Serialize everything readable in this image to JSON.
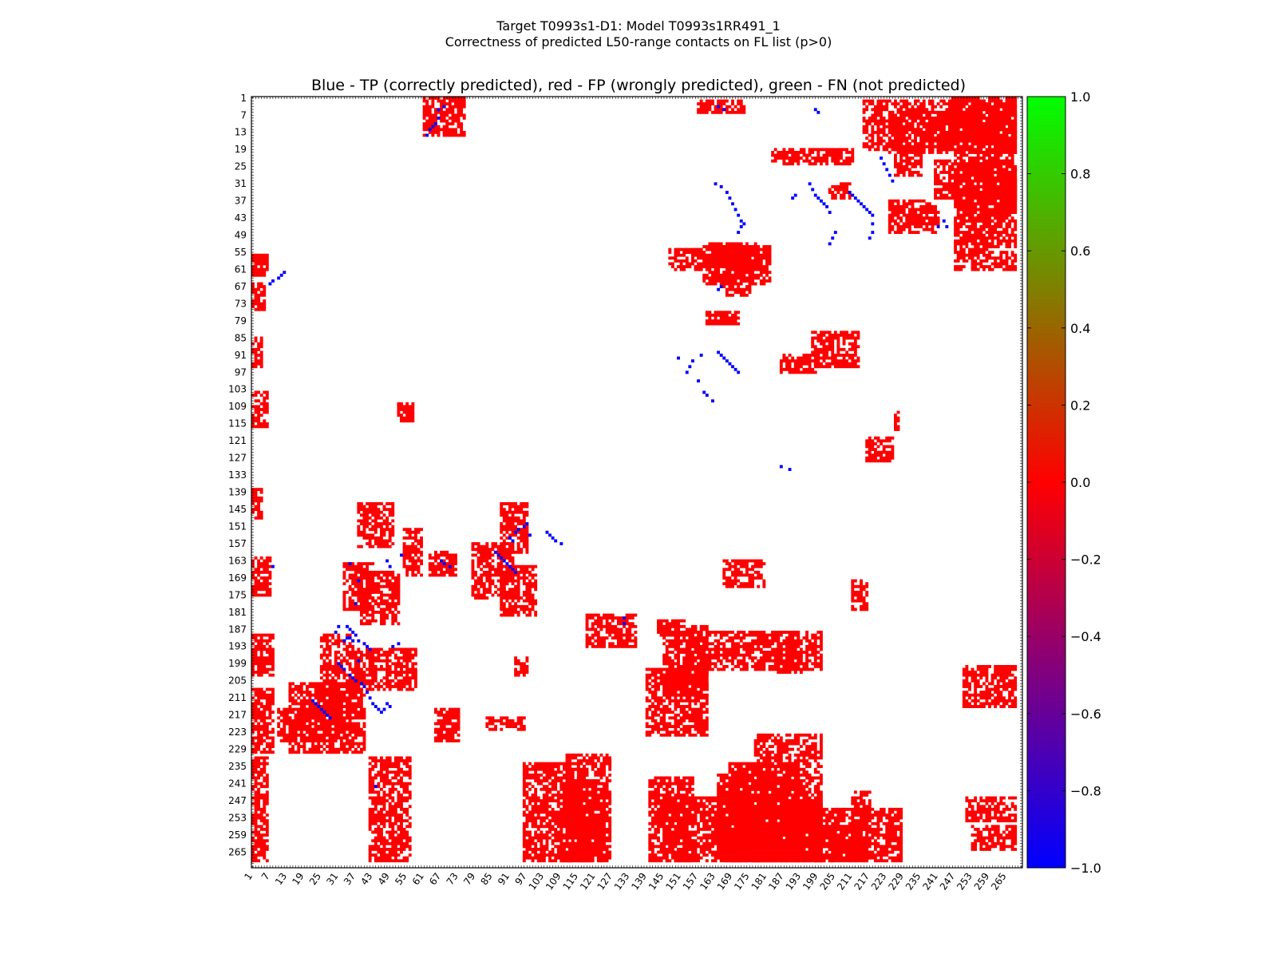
{
  "figure": {
    "title_line1": "Target T0993s1-D1: Model T0993s1RR491_1",
    "title_line2": "Correctness of predicted L50-range contacts on FL list (p>0)"
  },
  "chart_data": {
    "type": "heatmap",
    "title": "Blue - TP (correctly predicted), red - FP (wrongly predicted), green - FN (not predicted)",
    "xlim": [
      1,
      270
    ],
    "ylim": [
      1,
      270
    ],
    "x_ticks": [
      1,
      7,
      13,
      19,
      25,
      31,
      37,
      43,
      49,
      55,
      61,
      67,
      73,
      79,
      85,
      91,
      97,
      103,
      109,
      115,
      121,
      127,
      133,
      139,
      145,
      151,
      157,
      163,
      169,
      175,
      181,
      187,
      193,
      199,
      205,
      211,
      217,
      223,
      229,
      235,
      241,
      247,
      253,
      259,
      265
    ],
    "y_ticks": [
      1,
      7,
      13,
      19,
      25,
      31,
      37,
      43,
      49,
      55,
      61,
      67,
      73,
      79,
      85,
      91,
      97,
      103,
      109,
      115,
      121,
      127,
      133,
      139,
      145,
      151,
      157,
      163,
      169,
      175,
      181,
      187,
      193,
      199,
      205,
      211,
      217,
      223,
      229,
      235,
      241,
      247,
      253,
      259,
      265
    ],
    "colorbar": {
      "range": [
        -1.0,
        1.0
      ],
      "ticks": [
        "1.0",
        "0.8",
        "0.6",
        "0.4",
        "0.2",
        "0.0",
        "−0.2",
        "−0.4",
        "−0.6",
        "−0.8",
        "−1.0"
      ],
      "colors": [
        "#00ff00",
        "#ff0000",
        "#0000ff"
      ]
    },
    "colors": {
      "tp": "#0000ff",
      "fp": "#ff0000",
      "fn": "#00ff00"
    },
    "fp_regions": [
      [
        1,
        56,
        6,
        63
      ],
      [
        1,
        66,
        5,
        75
      ],
      [
        1,
        85,
        4,
        95
      ],
      [
        1,
        104,
        6,
        116
      ],
      [
        1,
        138,
        4,
        148
      ],
      [
        1,
        162,
        7,
        175
      ],
      [
        1,
        189,
        8,
        203
      ],
      [
        1,
        208,
        8,
        230
      ],
      [
        1,
        232,
        6,
        268
      ],
      [
        10,
        215,
        28,
        226
      ],
      [
        14,
        206,
        40,
        230
      ],
      [
        25,
        189,
        36,
        222
      ],
      [
        33,
        164,
        43,
        180
      ],
      [
        37,
        194,
        58,
        208
      ],
      [
        38,
        143,
        50,
        158
      ],
      [
        39,
        167,
        52,
        185
      ],
      [
        42,
        232,
        56,
        268
      ],
      [
        52,
        108,
        57,
        114
      ],
      [
        54,
        152,
        60,
        168
      ],
      [
        61,
        1,
        75,
        14
      ],
      [
        63,
        160,
        72,
        168
      ],
      [
        65,
        215,
        73,
        226
      ],
      [
        78,
        157,
        92,
        176
      ],
      [
        88,
        143,
        97,
        160
      ],
      [
        88,
        165,
        100,
        182
      ],
      [
        96,
        234,
        118,
        268
      ],
      [
        109,
        240,
        124,
        268
      ],
      [
        111,
        231,
        126,
        268
      ],
      [
        118,
        182,
        135,
        193
      ],
      [
        140,
        239,
        155,
        268
      ],
      [
        143,
        184,
        152,
        189
      ],
      [
        147,
        54,
        158,
        61
      ],
      [
        145,
        186,
        160,
        210
      ],
      [
        159,
        53,
        182,
        66
      ],
      [
        161,
        52,
        178,
        60
      ],
      [
        160,
        76,
        171,
        80
      ],
      [
        163,
        54,
        176,
        59
      ],
      [
        166,
        163,
        180,
        172
      ],
      [
        185,
        194,
        193,
        202
      ],
      [
        186,
        91,
        198,
        97
      ],
      [
        197,
        83,
        213,
        95
      ],
      [
        203,
        31,
        210,
        36
      ],
      [
        164,
        238,
        180,
        268
      ],
      [
        166,
        55,
        175,
        70
      ],
      [
        177,
        224,
        200,
        268
      ],
      [
        183,
        19,
        211,
        24
      ],
      [
        196,
        256,
        212,
        268
      ],
      [
        224,
        37,
        240,
        48
      ],
      [
        226,
        17,
        235,
        28
      ],
      [
        232,
        40,
        241,
        45
      ],
      [
        226,
        111,
        227,
        117
      ],
      [
        216,
        120,
        225,
        128
      ],
      [
        211,
        244,
        217,
        268
      ],
      [
        246,
        1,
        268,
        17
      ],
      [
        247,
        20,
        268,
        61
      ],
      [
        249,
        33,
        262,
        44
      ],
      [
        251,
        246,
        268,
        254
      ],
      [
        253,
        256,
        268,
        264
      ],
      [
        215,
        2,
        268,
        19
      ],
      [
        224,
        6,
        268,
        20
      ],
      [
        240,
        23,
        268,
        36
      ],
      [
        263,
        30,
        268,
        40
      ],
      [
        139,
        201,
        160,
        224
      ],
      [
        153,
        188,
        200,
        201
      ],
      [
        145,
        246,
        175,
        268
      ],
      [
        83,
        218,
        96,
        222
      ],
      [
        93,
        197,
        97,
        203
      ],
      [
        157,
        2,
        173,
        6
      ],
      [
        168,
        234,
        192,
        268
      ],
      [
        168,
        247,
        200,
        268
      ],
      [
        184,
        250,
        228,
        268
      ],
      [
        211,
        170,
        216,
        180
      ],
      [
        250,
        200,
        268,
        214
      ]
    ],
    "tp_points": [
      [
        66,
        8
      ],
      [
        65,
        10
      ],
      [
        64,
        11
      ],
      [
        63,
        12
      ],
      [
        62,
        14
      ],
      [
        66,
        5
      ],
      [
        68,
        4
      ],
      [
        7,
        66
      ],
      [
        8,
        65
      ],
      [
        10,
        64
      ],
      [
        11,
        63
      ],
      [
        12,
        62
      ],
      [
        42,
        194
      ],
      [
        41,
        193
      ],
      [
        40,
        192
      ],
      [
        38,
        191
      ],
      [
        37,
        189
      ],
      [
        36,
        188
      ],
      [
        35,
        187
      ],
      [
        34,
        186
      ],
      [
        38,
        170
      ],
      [
        37,
        178
      ],
      [
        39,
        206
      ],
      [
        40,
        207
      ],
      [
        41,
        209
      ],
      [
        42,
        211
      ],
      [
        43,
        213
      ],
      [
        44,
        214
      ],
      [
        45,
        215
      ],
      [
        32,
        200
      ],
      [
        31,
        199
      ],
      [
        33,
        201
      ],
      [
        35,
        203
      ],
      [
        36,
        204
      ],
      [
        37,
        205
      ],
      [
        38,
        198
      ],
      [
        22,
        212
      ],
      [
        23,
        213
      ],
      [
        24,
        214
      ],
      [
        25,
        215
      ],
      [
        26,
        216
      ],
      [
        27,
        217
      ],
      [
        28,
        218
      ],
      [
        30,
        188
      ],
      [
        31,
        186
      ],
      [
        33,
        191
      ],
      [
        34,
        190
      ],
      [
        35,
        190
      ],
      [
        36,
        191
      ],
      [
        50,
        193
      ],
      [
        52,
        192
      ],
      [
        49,
        214
      ],
      [
        48,
        213
      ],
      [
        47,
        215
      ],
      [
        46,
        216
      ],
      [
        8,
        165
      ],
      [
        35,
        164
      ],
      [
        49,
        165
      ],
      [
        48,
        163
      ],
      [
        53,
        161
      ],
      [
        67,
        163
      ],
      [
        68,
        164
      ],
      [
        70,
        165
      ],
      [
        86,
        160
      ],
      [
        87,
        161
      ],
      [
        88,
        162
      ],
      [
        89,
        163
      ],
      [
        90,
        164
      ],
      [
        91,
        165
      ],
      [
        92,
        166
      ],
      [
        93,
        167
      ],
      [
        91,
        155
      ],
      [
        92,
        156
      ],
      [
        93,
        153
      ],
      [
        94,
        152
      ],
      [
        96,
        151
      ],
      [
        97,
        150
      ],
      [
        98,
        154
      ],
      [
        104,
        153
      ],
      [
        105,
        154
      ],
      [
        106,
        155
      ],
      [
        107,
        156
      ],
      [
        109,
        157
      ],
      [
        131,
        183
      ],
      [
        131,
        185
      ],
      [
        163,
        31
      ],
      [
        165,
        32
      ],
      [
        167,
        34
      ],
      [
        168,
        36
      ],
      [
        169,
        38
      ],
      [
        170,
        40
      ],
      [
        171,
        42
      ],
      [
        172,
        44
      ],
      [
        164,
        4
      ],
      [
        166,
        5
      ],
      [
        198,
        5
      ],
      [
        199,
        6
      ],
      [
        164,
        90
      ],
      [
        165,
        91
      ],
      [
        166,
        92
      ],
      [
        167,
        93
      ],
      [
        168,
        94
      ],
      [
        169,
        95
      ],
      [
        170,
        96
      ],
      [
        171,
        97
      ],
      [
        155,
        93
      ],
      [
        154,
        95
      ],
      [
        153,
        97
      ],
      [
        150,
        92
      ],
      [
        158,
        91
      ],
      [
        157,
        100
      ],
      [
        159,
        104
      ],
      [
        160,
        105
      ],
      [
        162,
        107
      ],
      [
        196,
        31
      ],
      [
        197,
        33
      ],
      [
        198,
        35
      ],
      [
        199,
        36
      ],
      [
        200,
        37
      ],
      [
        201,
        38
      ],
      [
        202,
        39
      ],
      [
        203,
        41
      ],
      [
        210,
        34
      ],
      [
        211,
        35
      ],
      [
        212,
        36
      ],
      [
        213,
        37
      ],
      [
        214,
        38
      ],
      [
        215,
        39
      ],
      [
        216,
        40
      ],
      [
        217,
        41
      ],
      [
        218,
        42
      ],
      [
        221,
        22
      ],
      [
        222,
        24
      ],
      [
        223,
        26
      ],
      [
        224,
        28
      ],
      [
        225,
        30
      ],
      [
        218,
        45
      ],
      [
        218,
        48
      ],
      [
        217,
        50
      ],
      [
        205,
        48
      ],
      [
        204,
        50
      ],
      [
        203,
        52
      ],
      [
        186,
        130
      ],
      [
        189,
        131
      ],
      [
        165,
        67
      ],
      [
        164,
        68
      ],
      [
        191,
        35
      ],
      [
        190,
        36
      ],
      [
        171,
        48
      ],
      [
        172,
        46
      ],
      [
        173,
        45
      ],
      [
        243,
        44
      ],
      [
        244,
        46
      ],
      [
        241,
        46
      ],
      [
        44,
        242
      ]
    ]
  }
}
